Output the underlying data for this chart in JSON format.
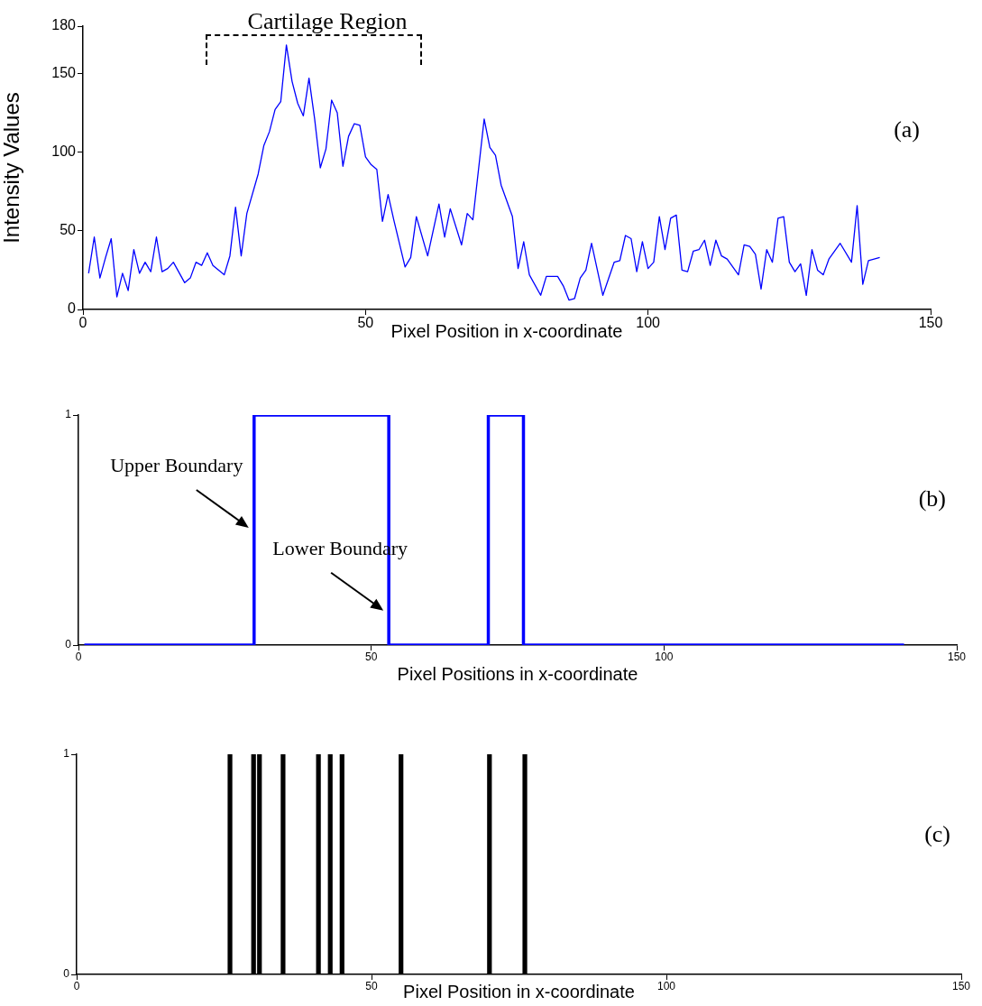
{
  "chart_data": [
    {
      "type": "line",
      "color": "#0000ff",
      "marker": "none",
      "xlabel": "Pixel Position in x-coordinate",
      "ylabel": "Intensity Values",
      "x": [
        1,
        2,
        3,
        4,
        5,
        6,
        7,
        8,
        9,
        10,
        11,
        12,
        13,
        14,
        15,
        16,
        18,
        19,
        20,
        21,
        22,
        23,
        25,
        26,
        27,
        28,
        29,
        31,
        32,
        33,
        34,
        35,
        36,
        37,
        38,
        39,
        40,
        41,
        42,
        43,
        44,
        45,
        46,
        47,
        48,
        49,
        50,
        51,
        52,
        53,
        54,
        55,
        57,
        58,
        59,
        61,
        63,
        64,
        65,
        67,
        68,
        69,
        70,
        71,
        72,
        73,
        74,
        76,
        77,
        78,
        79,
        81,
        82,
        84,
        85,
        86,
        87,
        88,
        89,
        90,
        92,
        94,
        95,
        96,
        97,
        98,
        99,
        100,
        101,
        102,
        103,
        104,
        105,
        106,
        107,
        108,
        109,
        110,
        111,
        112,
        113,
        114,
        116,
        117,
        118,
        119,
        120,
        121,
        122,
        123,
        124,
        125,
        126,
        127,
        128,
        129,
        130,
        131,
        132,
        134,
        136,
        137,
        138,
        139,
        141
      ],
      "values": [
        23,
        46,
        20,
        33,
        45,
        8,
        23,
        12,
        38,
        23,
        30,
        24,
        46,
        24,
        26,
        30,
        17,
        20,
        30,
        28,
        36,
        28,
        22,
        34,
        65,
        34,
        61,
        86,
        104,
        113,
        127,
        132,
        168,
        145,
        131,
        123,
        147,
        121,
        90,
        102,
        133,
        125,
        91,
        110,
        118,
        117,
        97,
        92,
        89,
        56,
        73,
        57,
        27,
        33,
        59,
        34,
        67,
        46,
        64,
        41,
        61,
        57,
        89,
        121,
        103,
        98,
        79,
        59,
        26,
        43,
        22,
        9,
        21,
        21,
        15,
        6,
        7,
        20,
        25,
        42,
        9,
        30,
        31,
        47,
        45,
        24,
        43,
        26,
        30,
        59,
        38,
        58,
        60,
        25,
        24,
        37,
        38,
        44,
        28,
        44,
        34,
        32,
        22,
        41,
        40,
        35,
        13,
        38,
        30,
        58,
        59,
        30,
        24,
        29,
        9,
        38,
        25,
        22,
        32,
        42,
        30,
        66,
        16,
        31,
        33
      ],
      "xlim": [
        0,
        150
      ],
      "xticks": [
        0,
        50,
        100,
        150
      ],
      "ylim": [
        0,
        180
      ],
      "yticks": [
        0,
        50,
        100,
        150,
        180
      ],
      "annotations": [
        "(a)",
        "Cartilage Region"
      ]
    },
    {
      "type": "step",
      "color": "#0000ff",
      "xlabel": "Pixel Positions in x-coordinate",
      "x": [
        1,
        30,
        53,
        70,
        76,
        141
      ],
      "values": [
        0,
        1,
        0,
        1,
        0,
        0
      ],
      "xlim": [
        0,
        150
      ],
      "xticks": [
        0,
        50,
        100,
        150
      ],
      "ylim": [
        0,
        1
      ],
      "yticks": [
        0,
        1
      ],
      "annotations": [
        "(b)",
        {
          "text": "Upper Boundary",
          "x": 30,
          "y": 0.51
        },
        {
          "text": "Lower Boundary",
          "x": 53,
          "y": 0.15
        }
      ]
    },
    {
      "type": "bar",
      "color": "#000000",
      "xlabel": "Pixel Position in x-coordinate",
      "x": [
        26,
        30,
        31,
        35,
        41,
        43,
        45,
        55,
        70,
        76
      ],
      "values": [
        1,
        1,
        1,
        1,
        1,
        1,
        1,
        1,
        1,
        1
      ],
      "xlim": [
        0,
        150
      ],
      "xticks": [
        0,
        50,
        100,
        150
      ],
      "ylim": [
        0,
        1
      ],
      "yticks": [
        0,
        1
      ],
      "annotations": [
        "(c)"
      ]
    }
  ]
}
